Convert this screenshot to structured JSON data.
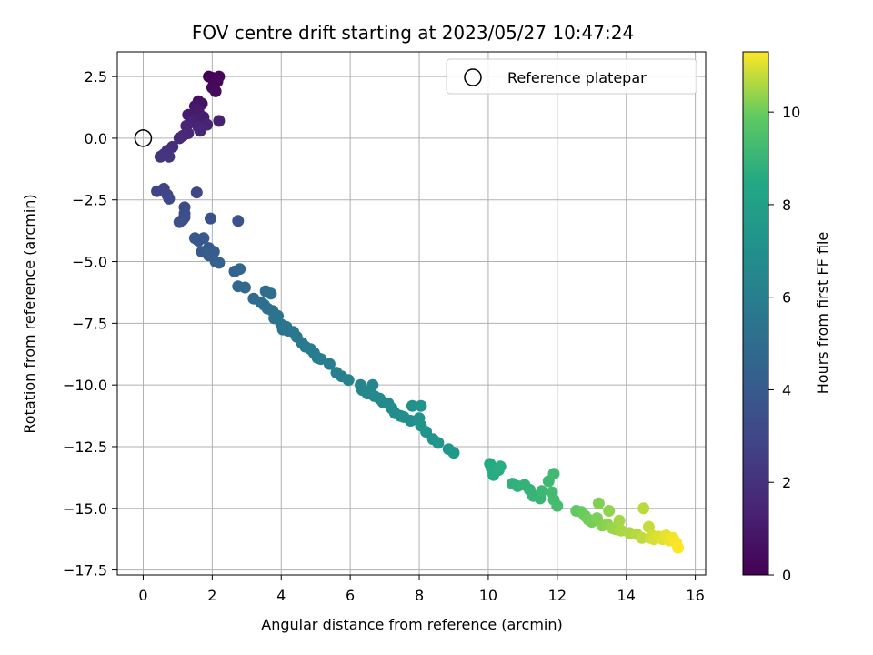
{
  "chart_data": {
    "type": "scatter",
    "title": "FOV centre drift starting at 2023/05/27 10:47:24",
    "xlabel": "Angular distance from reference (arcmin)",
    "ylabel": "Rotation from reference (arcmin)",
    "xlim": [
      -0.75,
      16.3
    ],
    "ylim": [
      -17.7,
      3.5
    ],
    "xticks": [
      0,
      2,
      4,
      6,
      8,
      10,
      12,
      14,
      16
    ],
    "yticks": [
      2.5,
      0.0,
      -2.5,
      -5.0,
      -7.5,
      -10.0,
      -12.5,
      -15.0,
      -17.5
    ],
    "grid": true,
    "legend": {
      "placement": "top-right",
      "entries": [
        "Reference platepar"
      ]
    },
    "reference": {
      "x": 0,
      "y": 0
    },
    "colorbar": {
      "label": "Hours from first FF file",
      "colormap": "viridis",
      "range": [
        0,
        11.3
      ],
      "ticks": [
        0,
        2,
        4,
        6,
        8,
        10
      ]
    },
    "series": [
      {
        "points": [
          [
            1.9,
            2.5,
            0.05
          ],
          [
            2.0,
            2.45,
            0.1
          ],
          [
            2.1,
            2.4,
            0.15
          ],
          [
            2.2,
            2.5,
            0.2
          ],
          [
            2.05,
            2.2,
            0.25
          ],
          [
            2.15,
            2.3,
            0.3
          ],
          [
            2.0,
            2.05,
            0.35
          ],
          [
            2.1,
            1.9,
            0.4
          ],
          [
            1.6,
            1.5,
            0.6
          ],
          [
            1.7,
            1.4,
            0.7
          ],
          [
            1.5,
            1.3,
            0.8
          ],
          [
            1.55,
            1.2,
            0.9
          ],
          [
            1.6,
            1.1,
            1.0
          ],
          [
            1.3,
            0.95,
            1.1
          ],
          [
            1.75,
            0.85,
            1.15
          ],
          [
            1.5,
            0.8,
            1.2
          ],
          [
            2.2,
            0.7,
            1.3
          ],
          [
            1.4,
            0.65,
            1.35
          ],
          [
            1.85,
            0.55,
            1.4
          ],
          [
            1.25,
            0.5,
            1.45
          ],
          [
            1.6,
            0.45,
            1.5
          ],
          [
            1.65,
            0.3,
            1.55
          ],
          [
            1.3,
            0.2,
            1.6
          ],
          [
            1.15,
            0.1,
            1.65
          ],
          [
            1.05,
            0.0,
            1.7
          ],
          [
            0.85,
            -0.35,
            1.8
          ],
          [
            0.7,
            -0.5,
            1.9
          ],
          [
            0.6,
            -0.65,
            2.0
          ],
          [
            0.75,
            -0.75,
            2.1
          ],
          [
            0.5,
            -0.75,
            2.15
          ],
          [
            0.4,
            -2.15,
            2.8
          ],
          [
            0.6,
            -2.05,
            2.9
          ],
          [
            0.7,
            -2.3,
            3.0
          ],
          [
            0.75,
            -2.45,
            3.05
          ],
          [
            1.55,
            -2.2,
            3.1
          ],
          [
            1.2,
            -2.8,
            3.2
          ],
          [
            1.2,
            -3.05,
            3.3
          ],
          [
            1.15,
            -3.3,
            3.35
          ],
          [
            1.2,
            -3.2,
            3.4
          ],
          [
            1.05,
            -3.4,
            3.45
          ],
          [
            1.95,
            -3.25,
            3.5
          ],
          [
            2.75,
            -3.35,
            3.55
          ],
          [
            1.5,
            -4.05,
            3.8
          ],
          [
            1.6,
            -4.15,
            3.85
          ],
          [
            1.75,
            -4.05,
            3.9
          ],
          [
            1.9,
            -4.45,
            4.0
          ],
          [
            1.7,
            -4.6,
            4.05
          ],
          [
            1.9,
            -4.75,
            4.1
          ],
          [
            2.05,
            -4.6,
            4.15
          ],
          [
            1.85,
            -4.65,
            4.2
          ],
          [
            2.1,
            -5.0,
            4.3
          ],
          [
            2.2,
            -5.05,
            4.35
          ],
          [
            2.65,
            -5.4,
            4.6
          ],
          [
            2.8,
            -5.3,
            4.65
          ],
          [
            2.75,
            -6.0,
            4.75
          ],
          [
            2.95,
            -6.05,
            4.8
          ],
          [
            3.2,
            -6.5,
            4.9
          ],
          [
            3.4,
            -6.65,
            5.0
          ],
          [
            3.55,
            -6.2,
            5.05
          ],
          [
            3.5,
            -6.75,
            5.1
          ],
          [
            3.7,
            -6.3,
            5.15
          ],
          [
            3.6,
            -6.9,
            5.2
          ],
          [
            3.75,
            -7.0,
            5.25
          ],
          [
            3.8,
            -7.3,
            5.3
          ],
          [
            3.9,
            -7.2,
            5.35
          ],
          [
            4.0,
            -7.55,
            5.4
          ],
          [
            4.05,
            -7.75,
            5.45
          ],
          [
            4.15,
            -7.65,
            5.5
          ],
          [
            4.2,
            -7.8,
            5.55
          ],
          [
            4.35,
            -7.85,
            5.6
          ],
          [
            4.45,
            -8.05,
            5.65
          ],
          [
            4.6,
            -8.3,
            5.7
          ],
          [
            4.7,
            -8.45,
            5.75
          ],
          [
            4.85,
            -8.55,
            5.8
          ],
          [
            4.95,
            -8.7,
            5.85
          ],
          [
            5.05,
            -8.9,
            5.9
          ],
          [
            5.15,
            -8.95,
            5.95
          ],
          [
            5.4,
            -9.15,
            6.0
          ],
          [
            5.6,
            -9.5,
            6.1
          ],
          [
            5.75,
            -9.65,
            6.15
          ],
          [
            5.95,
            -9.8,
            6.2
          ],
          [
            6.3,
            -10.0,
            6.35
          ],
          [
            6.35,
            -10.2,
            6.4
          ],
          [
            6.55,
            -10.25,
            6.45
          ],
          [
            6.65,
            -10.0,
            6.5
          ],
          [
            6.5,
            -10.35,
            6.55
          ],
          [
            6.7,
            -10.45,
            6.6
          ],
          [
            6.85,
            -10.55,
            6.65
          ],
          [
            6.95,
            -10.7,
            6.7
          ],
          [
            7.1,
            -10.75,
            6.75
          ],
          [
            7.2,
            -10.95,
            6.8
          ],
          [
            7.3,
            -11.15,
            6.85
          ],
          [
            7.45,
            -11.25,
            6.9
          ],
          [
            7.55,
            -11.3,
            6.95
          ],
          [
            7.75,
            -11.45,
            7.0
          ],
          [
            7.8,
            -10.85,
            7.05
          ],
          [
            8.05,
            -10.85,
            7.1
          ],
          [
            8.0,
            -11.35,
            7.15
          ],
          [
            8.05,
            -11.65,
            7.2
          ],
          [
            8.2,
            -11.9,
            7.25
          ],
          [
            8.4,
            -12.2,
            7.3
          ],
          [
            8.55,
            -12.35,
            7.35
          ],
          [
            8.85,
            -12.6,
            7.45
          ],
          [
            9.0,
            -12.75,
            7.5
          ],
          [
            10.05,
            -13.2,
            8.5
          ],
          [
            10.1,
            -13.4,
            8.55
          ],
          [
            10.15,
            -13.65,
            8.6
          ],
          [
            10.3,
            -13.45,
            8.65
          ],
          [
            10.35,
            -13.3,
            8.7
          ],
          [
            10.7,
            -14.0,
            8.8
          ],
          [
            10.85,
            -14.1,
            8.85
          ],
          [
            11.05,
            -14.05,
            8.9
          ],
          [
            11.2,
            -14.25,
            8.95
          ],
          [
            11.3,
            -14.5,
            9.0
          ],
          [
            11.5,
            -14.6,
            9.05
          ],
          [
            11.55,
            -14.3,
            9.1
          ],
          [
            11.75,
            -13.9,
            9.15
          ],
          [
            11.9,
            -13.6,
            9.2
          ],
          [
            11.85,
            -14.35,
            9.25
          ],
          [
            11.9,
            -14.65,
            9.3
          ],
          [
            12.0,
            -14.9,
            9.35
          ],
          [
            12.55,
            -15.1,
            9.9
          ],
          [
            12.7,
            -15.15,
            9.95
          ],
          [
            12.8,
            -15.3,
            10.0
          ],
          [
            12.9,
            -15.45,
            10.05
          ],
          [
            13.0,
            -15.55,
            10.1
          ],
          [
            13.15,
            -15.4,
            10.15
          ],
          [
            13.2,
            -14.8,
            10.2
          ],
          [
            13.3,
            -15.7,
            10.25
          ],
          [
            13.45,
            -15.65,
            10.3
          ],
          [
            13.5,
            -15.1,
            10.35
          ],
          [
            13.6,
            -15.8,
            10.4
          ],
          [
            13.7,
            -15.85,
            10.45
          ],
          [
            13.8,
            -15.5,
            10.5
          ],
          [
            13.85,
            -15.9,
            10.55
          ],
          [
            14.1,
            -16.0,
            10.6
          ],
          [
            14.3,
            -16.05,
            10.65
          ],
          [
            14.5,
            -15.0,
            10.7
          ],
          [
            14.45,
            -16.2,
            10.75
          ],
          [
            14.65,
            -15.75,
            10.8
          ],
          [
            14.7,
            -16.2,
            10.85
          ],
          [
            14.75,
            -16.1,
            10.9
          ],
          [
            14.8,
            -16.25,
            10.95
          ],
          [
            14.95,
            -16.15,
            11.0
          ],
          [
            15.05,
            -16.25,
            11.05
          ],
          [
            15.15,
            -16.1,
            11.1
          ],
          [
            15.25,
            -16.3,
            11.15
          ],
          [
            15.35,
            -16.2,
            11.2
          ],
          [
            15.45,
            -16.4,
            11.25
          ],
          [
            15.5,
            -16.6,
            11.3
          ]
        ]
      }
    ]
  }
}
